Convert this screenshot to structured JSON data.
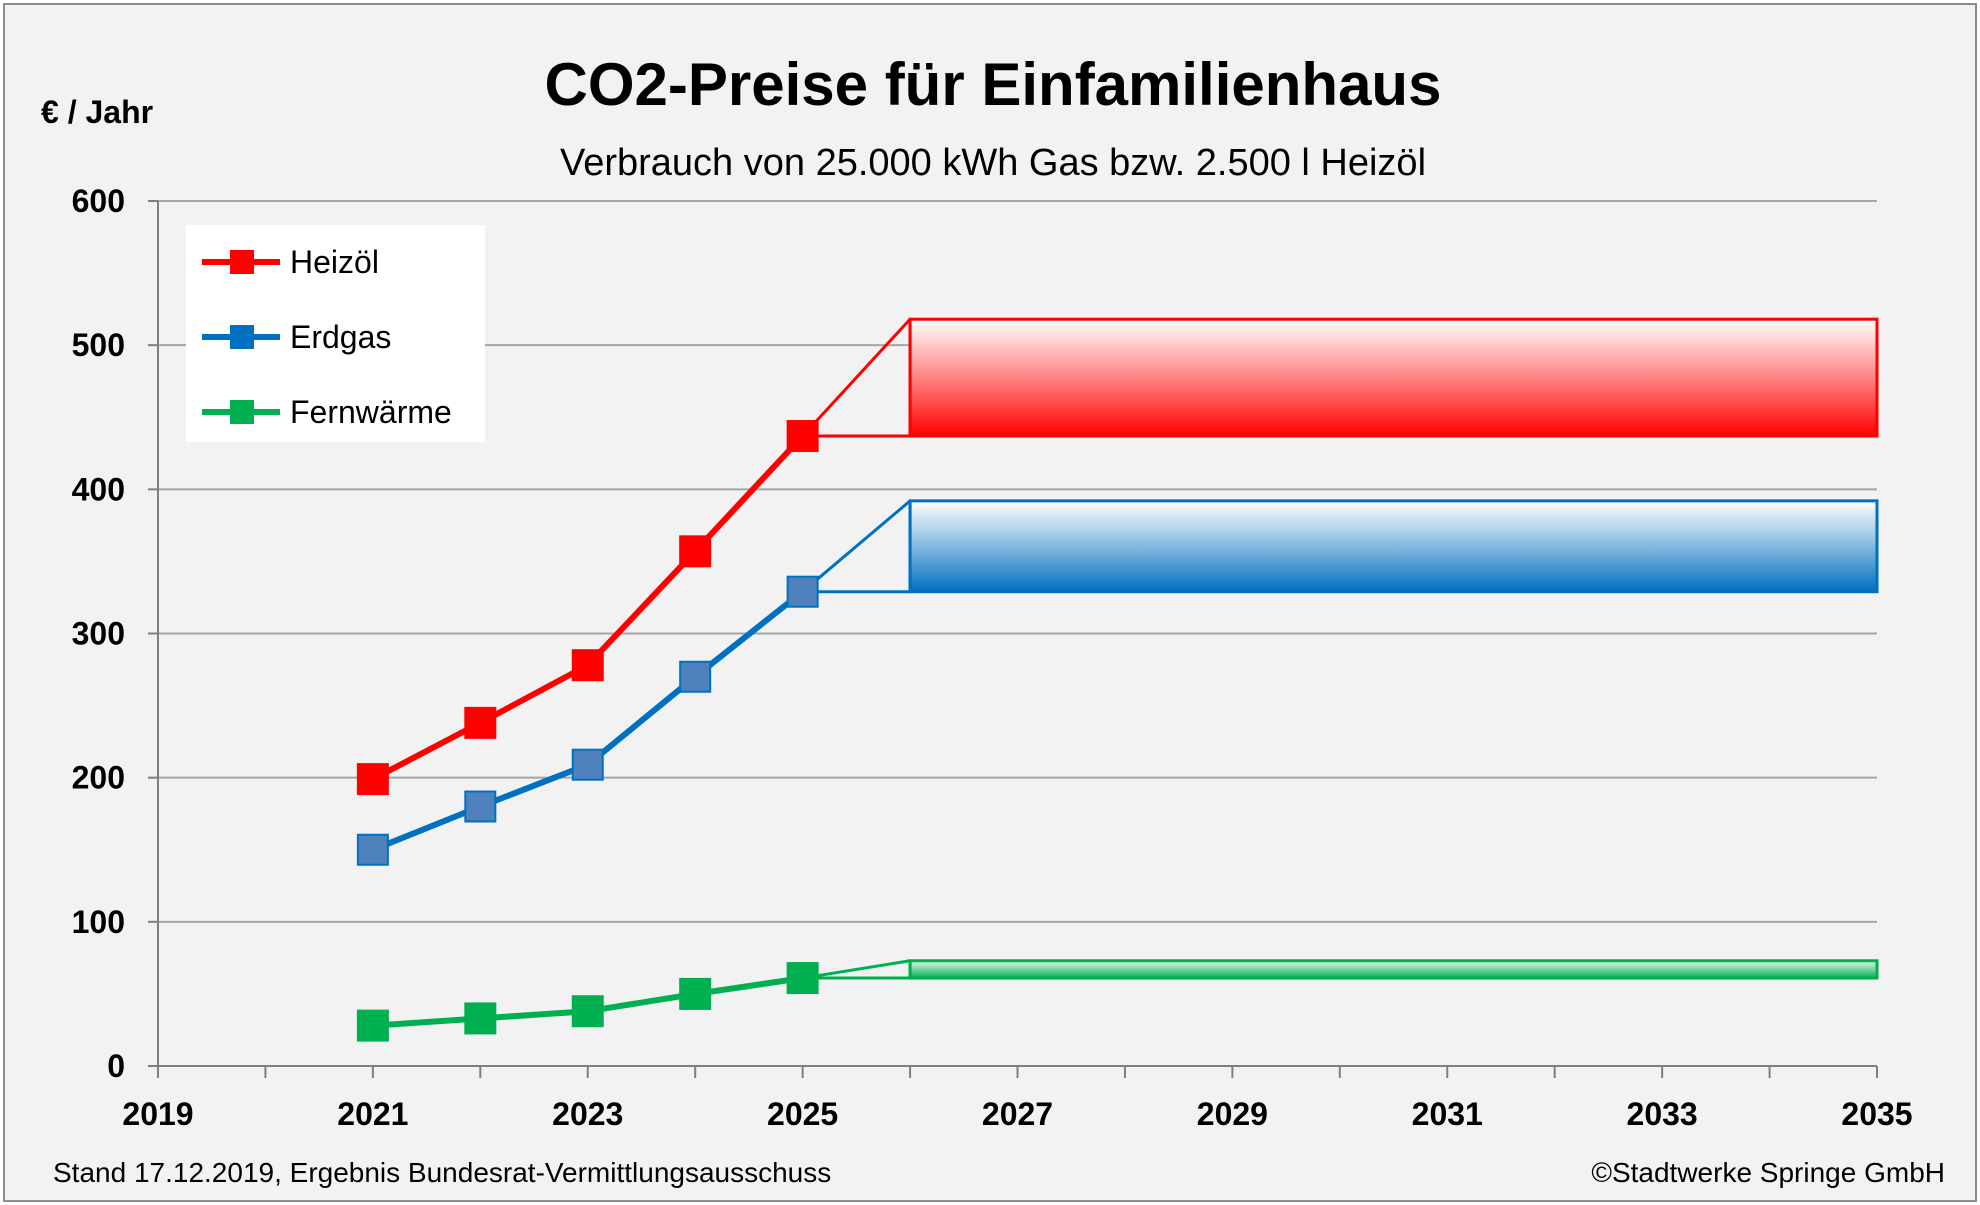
{
  "chart_data": {
    "type": "line",
    "title": "CO2-Preise für Einfamilienhaus",
    "subtitle": "Verbrauch von 25.000 kWh Gas bzw. 2.500 l Heizöl",
    "ylabel": "€ / Jahr",
    "xlabel": "",
    "xlim": [
      2019,
      2035
    ],
    "ylim": [
      0,
      600
    ],
    "x_ticks": [
      "2019",
      "2021",
      "2023",
      "2025",
      "2027",
      "2029",
      "2031",
      "2033",
      "2035"
    ],
    "y_ticks": [
      "0",
      "100",
      "200",
      "300",
      "400",
      "500",
      "600"
    ],
    "grid": "horizontal",
    "legend_position": "top-left",
    "series": [
      {
        "name": "Heizöl",
        "color": "#ff0000",
        "x": [
          2021,
          2022,
          2023,
          2024,
          2025
        ],
        "values": [
          199,
          238,
          278,
          357,
          437
        ],
        "corridor": {
          "from": 2026,
          "to": 2035,
          "low": 437,
          "high": 518
        }
      },
      {
        "name": "Erdgas",
        "color": "#0070c0",
        "marker_color": "#4f81bd",
        "x": [
          2021,
          2022,
          2023,
          2024,
          2025
        ],
        "values": [
          150,
          180,
          209,
          270,
          329
        ],
        "corridor": {
          "from": 2026,
          "to": 2035,
          "low": 329,
          "high": 392
        }
      },
      {
        "name": "Fernwärme",
        "color": "#00b050",
        "x": [
          2021,
          2022,
          2023,
          2024,
          2025
        ],
        "values": [
          28,
          33,
          38,
          50,
          61
        ],
        "corridor": {
          "from": 2026,
          "to": 2035,
          "low": 61,
          "high": 73
        }
      }
    ]
  },
  "footer": {
    "left": "Stand 17.12.2019, Ergebnis Bundesrat-Vermittlungsausschuss",
    "right": "©Stadtwerke Springe GmbH"
  }
}
